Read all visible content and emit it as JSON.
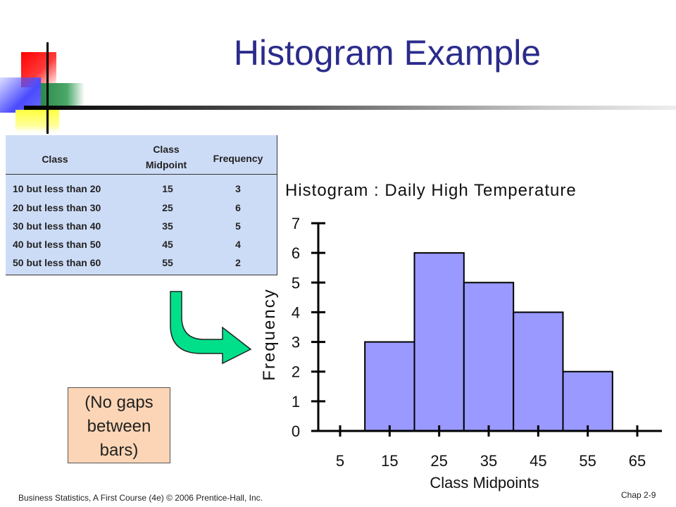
{
  "slide": {
    "title": "Histogram Example",
    "footer_left": "Business Statistics, A First Course (4e) © 2006 Prentice-Hall, Inc.",
    "footer_right": "Chap 2-9",
    "note": [
      "(No gaps",
      "between",
      "bars)"
    ]
  },
  "table": {
    "headers": {
      "class": "Class",
      "midpoint_line1": "Class",
      "midpoint_line2": "Midpoint",
      "frequency": "Frequency"
    },
    "rows": [
      {
        "class": "10 but less than 20",
        "midpoint": "15",
        "frequency": "3"
      },
      {
        "class": "20 but less than 30",
        "midpoint": "25",
        "frequency": "6"
      },
      {
        "class": "30 but less than 40",
        "midpoint": "35",
        "frequency": "5"
      },
      {
        "class": "40 but less than 50",
        "midpoint": "45",
        "frequency": "4"
      },
      {
        "class": "50 but less than 60",
        "midpoint": "55",
        "frequency": "2"
      }
    ]
  },
  "colors": {
    "title": "#2b2b8c",
    "bar_fill": "#9999ff",
    "table_bg": "#cddcf6",
    "note_bg": "#fbd5b5",
    "arrow": "#00e08a"
  },
  "chart_data": {
    "type": "bar",
    "title": "Histogram : Daily High Temperature",
    "xlabel": "Class Midpoints",
    "ylabel": "Frequency",
    "x_ticks": [
      "5",
      "15",
      "25",
      "35",
      "45",
      "55",
      "65"
    ],
    "y_ticks": [
      "0",
      "1",
      "2",
      "3",
      "4",
      "5",
      "6",
      "7"
    ],
    "categories": [
      "15",
      "25",
      "35",
      "45",
      "55"
    ],
    "values": [
      3,
      6,
      5,
      4,
      2
    ],
    "ylim": [
      0,
      7
    ],
    "xlim": [
      5,
      65
    ],
    "grid": false,
    "legend": "none",
    "bar_color": "#9999ff"
  }
}
